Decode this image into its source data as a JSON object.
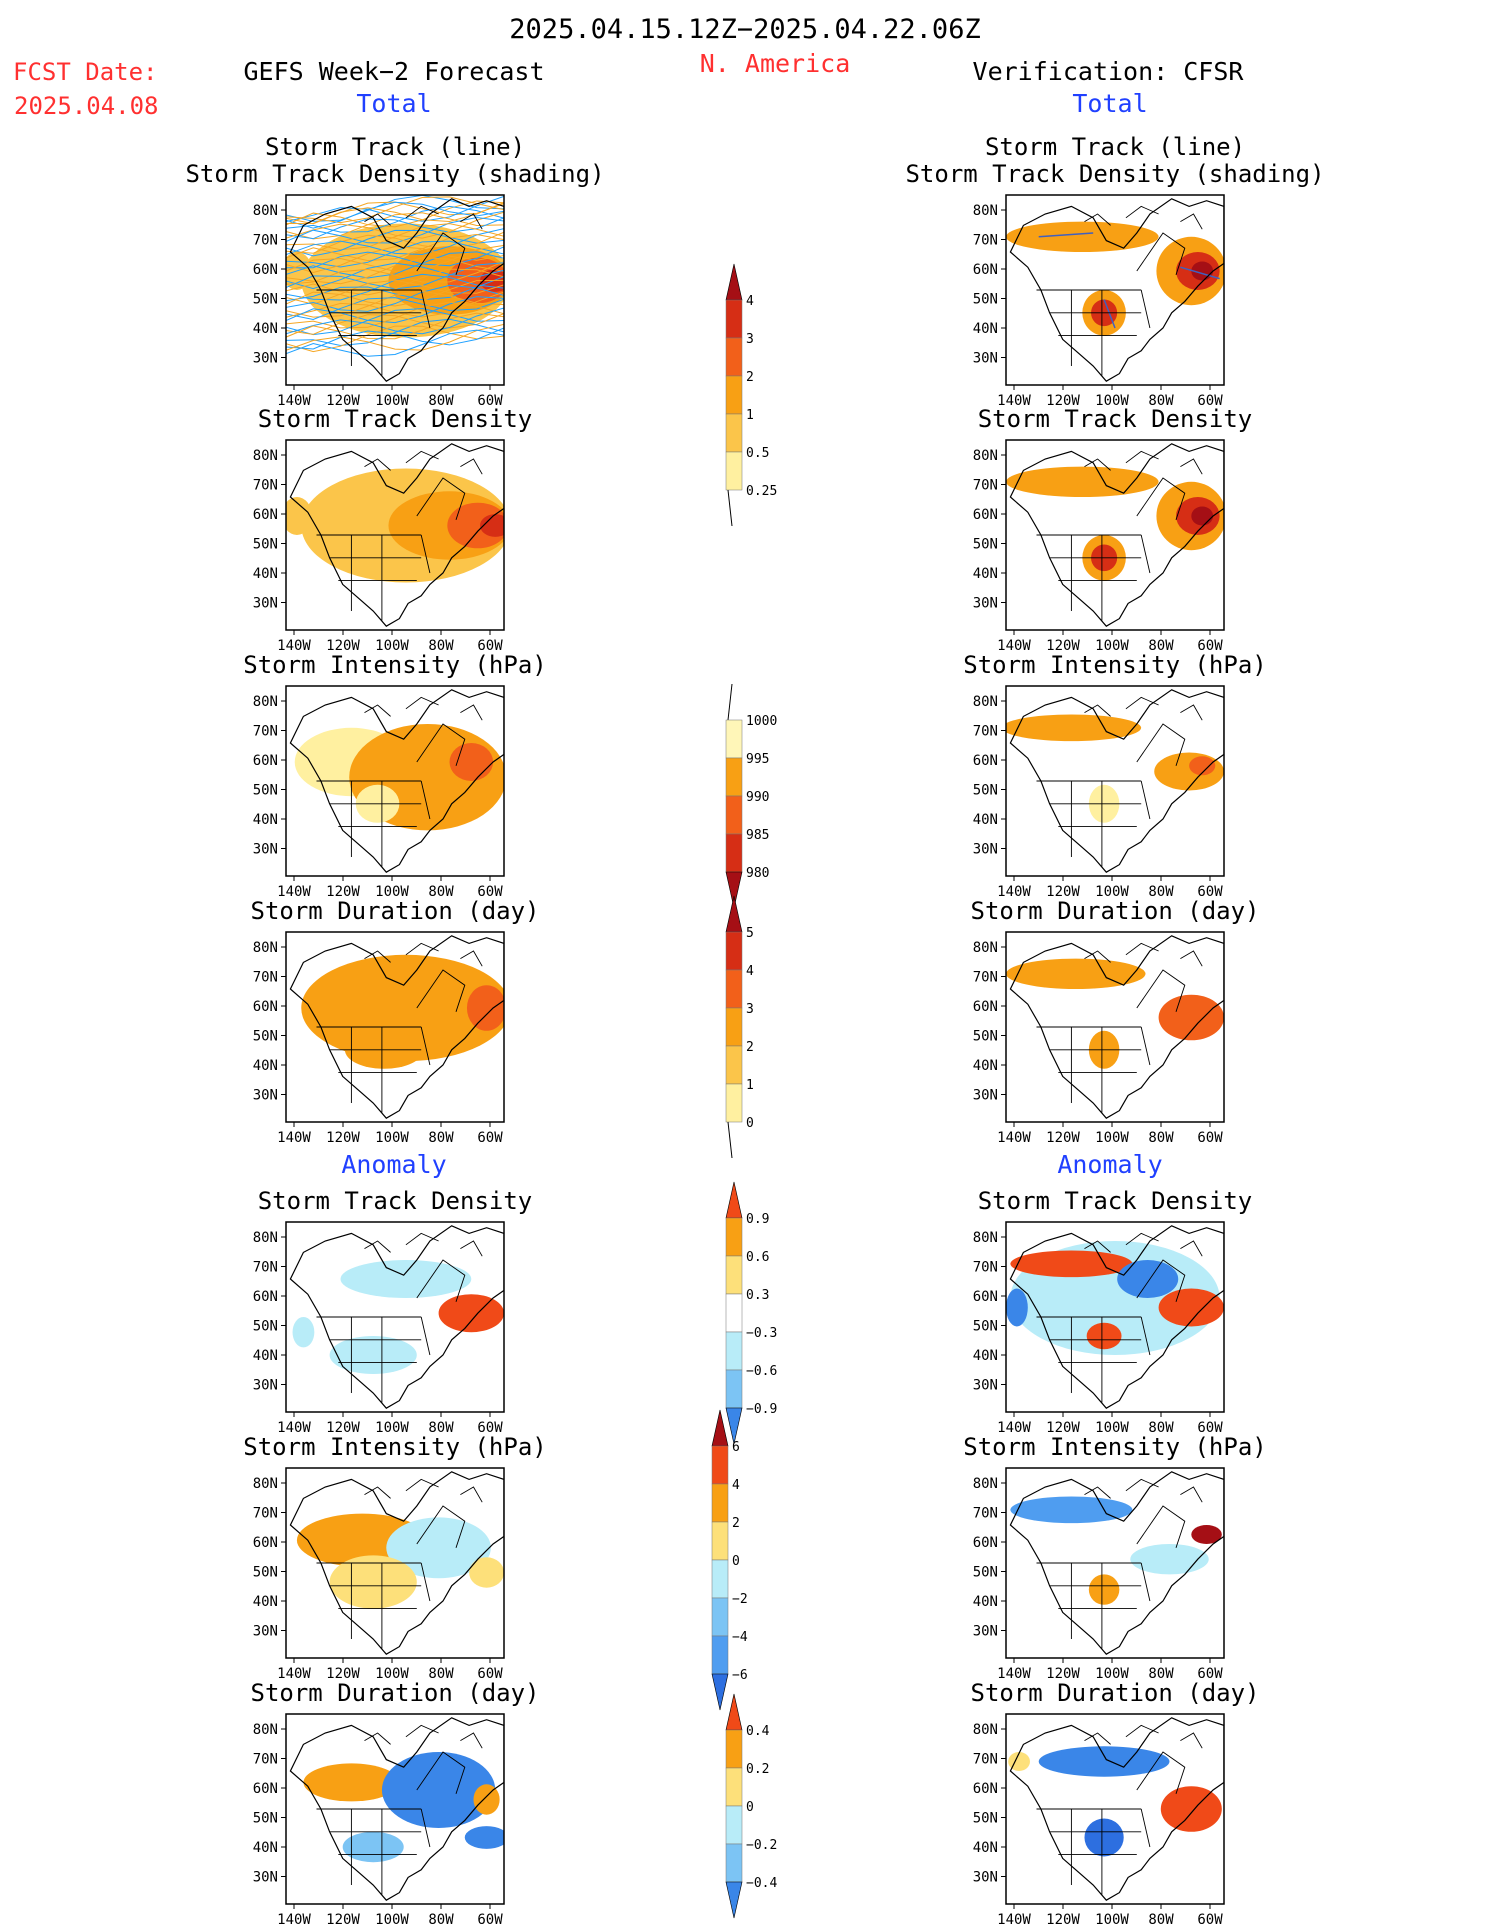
{
  "header": {
    "time_range": "2025.04.15.12Z−2025.04.22.06Z",
    "fcst_label": "FCST Date:",
    "fcst_date": "2025.04.08",
    "left_title": "GEFS Week−2 Forecast",
    "region": "N. America",
    "right_title": "Verification: CFSR",
    "left_total": "Total",
    "right_total": "Total",
    "left_anomaly": "Anomaly",
    "right_anomaly": "Anomaly"
  },
  "colors": {
    "title_red": "#ff3030",
    "title_blue": "#2040ff",
    "lat_labels": [
      "80N",
      "70N",
      "60N",
      "50N",
      "40N",
      "30N"
    ],
    "lon_labels": [
      "140W",
      "120W",
      "100W",
      "80W",
      "60W"
    ]
  },
  "panels": {
    "left": [
      {
        "title1": "Storm Track (line)",
        "title2": "Storm Track Density (shading)"
      },
      {
        "title1": "Storm Track Density"
      },
      {
        "title1": "Storm Intensity (hPa)"
      },
      {
        "title1": "Storm Duration (day)"
      },
      {
        "title1": "Storm Track Density"
      },
      {
        "title1": "Storm Intensity (hPa)"
      },
      {
        "title1": "Storm Duration (day)"
      }
    ],
    "right": [
      {
        "title1": "Storm Track (line)",
        "title2": "Storm Track Density (shading)"
      },
      {
        "title1": "Storm Track Density"
      },
      {
        "title1": "Storm Intensity (hPa)"
      },
      {
        "title1": "Storm Duration (day)"
      },
      {
        "title1": "Storm Track Density"
      },
      {
        "title1": "Storm Intensity (hPa)"
      },
      {
        "title1": "Storm Duration (day)"
      }
    ]
  },
  "colorbars": [
    {
      "name": "density-total",
      "labels": [
        "4",
        "3",
        "2",
        "1",
        "0.5",
        "0.25"
      ],
      "colors": [
        "#a50f15",
        "#d62e15",
        "#f2601a",
        "#f8a014",
        "#fbc54a",
        "#fff0a0"
      ],
      "top_arrow": true,
      "bottom_tail": true
    },
    {
      "name": "intensity-total",
      "labels": [
        "1000",
        "995",
        "990",
        "985",
        "980"
      ],
      "colors": [
        "#fff6b8",
        "#f8a014",
        "#f2601a",
        "#d62e15",
        "#a50f15"
      ],
      "top_tail": true,
      "bottom_arrow": true
    },
    {
      "name": "duration-total",
      "labels": [
        "5",
        "4",
        "3",
        "2",
        "1",
        "0"
      ],
      "colors": [
        "#a50f15",
        "#d62e15",
        "#f2601a",
        "#f8a014",
        "#fbc54a",
        "#fff0a0"
      ],
      "top_arrow": true,
      "bottom_tail": true
    },
    {
      "name": "density-anomaly",
      "labels": [
        "0.9",
        "0.6",
        "0.3",
        "−0.3",
        "−0.6",
        "−0.9"
      ],
      "colors": [
        "#f04a18",
        "#f8a014",
        "#fde07a",
        "#ffffff",
        "#b8ecf8",
        "#7cc4f4",
        "#3a86e8"
      ],
      "top_arrow": true,
      "bottom_arrow": true
    },
    {
      "name": "intensity-anomaly",
      "labels": [
        "6",
        "4",
        "2",
        "0",
        "−2",
        "−4",
        "−6"
      ],
      "colors": [
        "#a50f15",
        "#f04a18",
        "#f8a014",
        "#fde07a",
        "#b8ecf8",
        "#7cc4f4",
        "#4f9df0",
        "#2d6fe0"
      ],
      "top_arrow": true,
      "bottom_arrow": true
    },
    {
      "name": "duration-anomaly",
      "labels": [
        "0.4",
        "0.2",
        "0",
        "−0.2",
        "−0.4"
      ],
      "colors": [
        "#f04a18",
        "#f8a014",
        "#fde07a",
        "#b8ecf8",
        "#7cc4f4",
        "#3a86e8"
      ],
      "top_arrow": true,
      "bottom_arrow": true
    }
  ]
}
